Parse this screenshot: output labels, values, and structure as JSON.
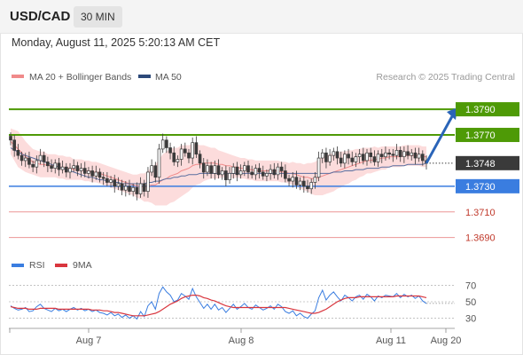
{
  "header": {
    "symbol": "USD/CAD",
    "timeframe": "30 MIN"
  },
  "datetime": "Monday, August 11, 2025 5:20:13 AM CET",
  "legend": {
    "ma20": "MA 20 + Bollinger Bands",
    "ma50": "MA 50"
  },
  "credit": "Research © 2025 Trading Central",
  "colors": {
    "resistance": "#4e9a06",
    "support": "#3a7de0",
    "weak_level": "#e57373",
    "current_price_bg": "#3a3a3a",
    "bollinger_fill": "#fbd6d6",
    "ma20": "#f08a8a",
    "ma50": "#5a6fa0",
    "candle_up": "#ffffff",
    "candle_down": "#3a3a3a",
    "arrow": "#2a64b8",
    "rsi": "#3a7de0",
    "rsi_ma": "#d9363e"
  },
  "rsi_legend": {
    "rsi": "RSI",
    "ma": "9MA"
  },
  "chart_data": [
    {
      "type": "candlestick",
      "title": "USD/CAD 30 MIN",
      "x_tick_labels": [
        "Aug 7",
        "Aug 8",
        "Aug 11",
        "Aug 20"
      ],
      "ylim": [
        1.3678,
        1.3806
      ],
      "levels": [
        {
          "value": 1.379,
          "label": "1.3790",
          "kind": "resistance"
        },
        {
          "value": 1.377,
          "label": "1.3770",
          "kind": "resistance"
        },
        {
          "value": 1.3748,
          "label": "1.3748",
          "kind": "current"
        },
        {
          "value": 1.373,
          "label": "1.3730",
          "kind": "support"
        },
        {
          "value": 1.371,
          "label": "1.3710",
          "kind": "weak"
        },
        {
          "value": 1.369,
          "label": "1.3690",
          "kind": "weak"
        }
      ],
      "close": [
        1.3766,
        1.3758,
        1.3754,
        1.375,
        1.3752,
        1.3747,
        1.3745,
        1.375,
        1.3754,
        1.3749,
        1.3746,
        1.3744,
        1.3748,
        1.3743,
        1.3745,
        1.3741,
        1.3744,
        1.3746,
        1.3742,
        1.3744,
        1.374,
        1.3742,
        1.3738,
        1.3741,
        1.3737,
        1.3736,
        1.3733,
        1.3735,
        1.373,
        1.3732,
        1.3727,
        1.373,
        1.3726,
        1.3729,
        1.3724,
        1.3732,
        1.3726,
        1.3741,
        1.3746,
        1.3737,
        1.3759,
        1.3766,
        1.376,
        1.3756,
        1.3749,
        1.3751,
        1.3759,
        1.3756,
        1.3752,
        1.3764,
        1.3755,
        1.3748,
        1.3741,
        1.3746,
        1.374,
        1.3746,
        1.3739,
        1.3742,
        1.3735,
        1.374,
        1.3745,
        1.3739,
        1.3742,
        1.3746,
        1.3741,
        1.3739,
        1.3744,
        1.3741,
        1.3738,
        1.374,
        1.3743,
        1.3739,
        1.3745,
        1.3742,
        1.3736,
        1.3734,
        1.3737,
        1.3731,
        1.3734,
        1.373,
        1.3728,
        1.3733,
        1.3737,
        1.3752,
        1.3756,
        1.3749,
        1.3754,
        1.3757,
        1.3752,
        1.3748,
        1.3755,
        1.3752,
        1.3749,
        1.3753,
        1.3755,
        1.375,
        1.3756,
        1.3753,
        1.3749,
        1.3755,
        1.3753,
        1.3756,
        1.3755,
        1.3754,
        1.3758,
        1.3753,
        1.3757,
        1.3754,
        1.3756,
        1.3752,
        1.3755,
        1.375,
        1.3748
      ],
      "ma20": [
        1.3765,
        1.3762,
        1.3759,
        1.3756,
        1.3753,
        1.3751,
        1.3749,
        1.3748,
        1.3747,
        1.3747,
        1.3746,
        1.3746,
        1.3746,
        1.3745,
        1.3745,
        1.3744,
        1.3744,
        1.3743,
        1.3743,
        1.3743,
        1.3742,
        1.3742,
        1.3741,
        1.3741,
        1.374,
        1.3739,
        1.3738,
        1.3737,
        1.3736,
        1.3735,
        1.3734,
        1.3733,
        1.3732,
        1.3731,
        1.373,
        1.373,
        1.3729,
        1.373,
        1.3731,
        1.3731,
        1.3733,
        1.3735,
        1.3736,
        1.3738,
        1.3739,
        1.374,
        1.3742,
        1.3743,
        1.3744,
        1.3746,
        1.3747,
        1.3747,
        1.3748,
        1.3748,
        1.3748,
        1.3748,
        1.3747,
        1.3747,
        1.3746,
        1.3746,
        1.3745,
        1.3745,
        1.3744,
        1.3744,
        1.3743,
        1.3743,
        1.3742,
        1.3742,
        1.3742,
        1.3742,
        1.3742,
        1.3742,
        1.3742,
        1.3741,
        1.3741,
        1.374,
        1.374,
        1.3739,
        1.3738,
        1.3737,
        1.3737,
        1.3736,
        1.3736,
        1.3737,
        1.3738,
        1.3739,
        1.374,
        1.3741,
        1.3742,
        1.3743,
        1.3744,
        1.3745,
        1.3746,
        1.3747,
        1.3748,
        1.3749,
        1.375,
        1.375,
        1.3751,
        1.3751,
        1.3752,
        1.3752,
        1.3753,
        1.3753,
        1.3753,
        1.3753,
        1.3754,
        1.3754,
        1.3754,
        1.3754,
        1.3754,
        1.3753,
        1.3753
      ],
      "ma50": [
        1.376,
        1.3758,
        1.3757,
        1.3755,
        1.3754,
        1.3753,
        1.3752,
        1.3751,
        1.375,
        1.3749,
        1.3748,
        1.3747,
        1.3746,
        1.3745,
        1.3744,
        1.3743,
        1.3742,
        1.3741,
        1.374,
        1.3739,
        1.3738,
        1.3737,
        1.3737,
        1.3736,
        1.3735,
        1.3735,
        1.3734,
        1.3734,
        1.3733,
        1.3733,
        1.3732,
        1.3732,
        1.3732,
        1.3732,
        1.3732,
        1.3732,
        1.3732,
        1.3733,
        1.3733,
        1.3734,
        1.3734,
        1.3735,
        1.3736,
        1.3736,
        1.3737,
        1.3737,
        1.3738,
        1.3738,
        1.3739,
        1.3739,
        1.3739,
        1.374,
        1.374,
        1.374,
        1.374,
        1.374,
        1.374,
        1.374,
        1.374,
        1.374,
        1.374,
        1.374,
        1.374,
        1.374,
        1.374,
        1.374,
        1.374,
        1.374,
        1.374,
        1.374,
        1.374,
        1.374,
        1.374,
        1.374,
        1.374,
        1.374,
        1.374,
        1.374,
        1.374,
        1.374,
        1.374,
        1.374,
        1.374,
        1.374,
        1.374,
        1.374,
        1.374,
        1.3741,
        1.3741,
        1.3741,
        1.3742,
        1.3742,
        1.3742,
        1.3743,
        1.3743,
        1.3743,
        1.3744,
        1.3744,
        1.3744,
        1.3744,
        1.3745,
        1.3745,
        1.3745,
        1.3746,
        1.3746,
        1.3746,
        1.3746,
        1.3747,
        1.3747,
        1.3747,
        1.3747,
        1.3747,
        1.3748
      ],
      "bollinger_halfwidth": [
        0.001,
        0.0012,
        0.0014,
        0.0013,
        0.0012,
        0.0011,
        0.001,
        0.001,
        0.001,
        0.001,
        0.0009,
        0.0009,
        0.0009,
        0.0009,
        0.0009,
        0.0009,
        0.0009,
        0.0008,
        0.0008,
        0.0008,
        0.0008,
        0.0008,
        0.0008,
        0.0008,
        0.0008,
        0.0008,
        0.0008,
        0.0008,
        0.0008,
        0.0008,
        0.0008,
        0.0008,
        0.0008,
        0.0008,
        0.0009,
        0.001,
        0.0011,
        0.0012,
        0.0014,
        0.0016,
        0.0018,
        0.002,
        0.0021,
        0.0021,
        0.0021,
        0.002,
        0.002,
        0.0019,
        0.0018,
        0.0017,
        0.0016,
        0.0015,
        0.0014,
        0.0013,
        0.0012,
        0.0012,
        0.0011,
        0.001,
        0.001,
        0.0009,
        0.0009,
        0.0008,
        0.0008,
        0.0008,
        0.0008,
        0.0008,
        0.0008,
        0.0008,
        0.0008,
        0.0008,
        0.0008,
        0.0008,
        0.0008,
        0.0008,
        0.0008,
        0.0008,
        0.0009,
        0.0009,
        0.001,
        0.001,
        0.0011,
        0.0012,
        0.0013,
        0.0014,
        0.0015,
        0.0015,
        0.0015,
        0.0015,
        0.0014,
        0.0014,
        0.0013,
        0.0013,
        0.0012,
        0.0012,
        0.0011,
        0.0011,
        0.001,
        0.001,
        0.001,
        0.0009,
        0.0009,
        0.0009,
        0.0008,
        0.0008,
        0.0008,
        0.0008,
        0.0008,
        0.0008,
        0.0008,
        0.0008,
        0.0008,
        0.0008,
        0.0008
      ],
      "forecast_target": 1.379
    },
    {
      "type": "line",
      "title": "RSI",
      "ylim": [
        22,
        78
      ],
      "y_ticks": [
        70,
        50,
        30
      ],
      "series": [
        {
          "name": "RSI",
          "values": [
            45,
            42,
            40,
            41,
            43,
            38,
            39,
            44,
            47,
            42,
            40,
            38,
            42,
            39,
            41,
            38,
            41,
            43,
            40,
            42,
            39,
            41,
            38,
            40,
            37,
            36,
            34,
            37,
            33,
            35,
            31,
            34,
            30,
            33,
            29,
            38,
            32,
            45,
            50,
            41,
            60,
            68,
            62,
            58,
            50,
            52,
            60,
            57,
            53,
            66,
            56,
            49,
            42,
            47,
            41,
            47,
            40,
            43,
            37,
            42,
            47,
            41,
            44,
            48,
            43,
            41,
            46,
            43,
            40,
            42,
            45,
            41,
            47,
            44,
            38,
            36,
            39,
            33,
            36,
            32,
            30,
            35,
            39,
            55,
            64,
            52,
            58,
            62,
            56,
            51,
            58,
            55,
            51,
            56,
            58,
            53,
            59,
            56,
            51,
            57,
            55,
            58,
            57,
            56,
            60,
            55,
            59,
            56,
            58,
            54,
            57,
            51,
            48
          ]
        },
        {
          "name": "9MA",
          "values": [
            44,
            43,
            42,
            42,
            42,
            41,
            41,
            41,
            42,
            42,
            42,
            42,
            42,
            41,
            41,
            41,
            41,
            41,
            41,
            41,
            41,
            41,
            40,
            40,
            40,
            39,
            39,
            38,
            37,
            37,
            36,
            35,
            34,
            33,
            33,
            33,
            33,
            34,
            35,
            36,
            38,
            41,
            44,
            47,
            49,
            51,
            54,
            56,
            57,
            58,
            58,
            57,
            55,
            54,
            52,
            51,
            49,
            47,
            45,
            44,
            43,
            43,
            43,
            43,
            43,
            43,
            43,
            43,
            43,
            43,
            43,
            43,
            43,
            43,
            43,
            42,
            41,
            40,
            39,
            38,
            37,
            36,
            36,
            37,
            39,
            41,
            44,
            47,
            50,
            52,
            54,
            55,
            55,
            55,
            56,
            56,
            56,
            56,
            56,
            56,
            56,
            56,
            56,
            56,
            57,
            57,
            57,
            57,
            57,
            57,
            57,
            56,
            55
          ]
        }
      ]
    }
  ]
}
